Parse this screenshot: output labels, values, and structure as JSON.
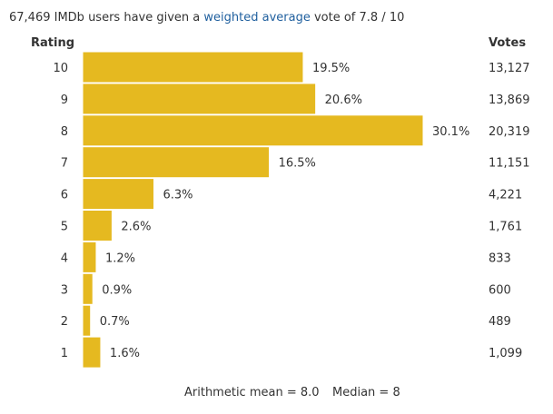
{
  "summary": {
    "prefix": "67,469 IMDb users have given a ",
    "link": "weighted average",
    "suffix": " vote of 7.8 / 10"
  },
  "headers": {
    "rating": "Rating",
    "votes": "Votes"
  },
  "footer": {
    "mean": "Arithmetic mean = 8.0",
    "median": "Median = 8"
  },
  "colors": {
    "bar": "#e5b920",
    "bar_edge": "#ffffff",
    "link": "#1f5f9e"
  },
  "chart_data": {
    "type": "bar",
    "orientation": "horizontal",
    "categories": [
      "10",
      "9",
      "8",
      "7",
      "6",
      "5",
      "4",
      "3",
      "2",
      "1"
    ],
    "values": [
      19.5,
      20.6,
      30.1,
      16.5,
      6.3,
      2.6,
      1.2,
      0.9,
      0.7,
      1.6
    ],
    "percent_labels": [
      "19.5%",
      "20.6%",
      "30.1%",
      "16.5%",
      "6.3%",
      "2.6%",
      "1.2%",
      "0.9%",
      "0.7%",
      "1.6%"
    ],
    "votes": [
      "13,127",
      "13,869",
      "20,319",
      "11,151",
      "4,221",
      "1,761",
      "833",
      "600",
      "489",
      "1,099"
    ]
  }
}
